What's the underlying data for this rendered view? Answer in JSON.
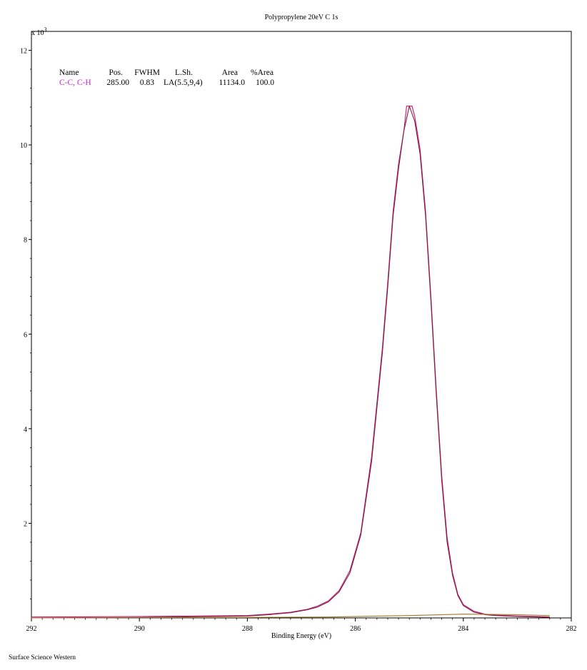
{
  "chart_data": {
    "type": "line",
    "title": "Polypropylene 20eV C 1s",
    "xlabel": "Binding Energy (eV)",
    "ylabel": "",
    "y_multiplier_label": "x 10",
    "y_multiplier_exponent": "3",
    "xlim": [
      292,
      282
    ],
    "ylim": [
      0,
      12.4
    ],
    "x_reversed": true,
    "x_ticks": [
      292,
      290,
      288,
      286,
      284,
      282
    ],
    "x_tick_labels": [
      "292",
      "290",
      "288",
      "286",
      "284",
      "282"
    ],
    "y_ticks": [
      2,
      4,
      6,
      8,
      10,
      12
    ],
    "y_tick_labels": [
      "2",
      "4",
      "6",
      "8",
      "10",
      "12"
    ],
    "grid": false,
    "legend": "none",
    "component_table": {
      "headers": [
        "Name",
        "Pos.",
        "FWHM",
        "L.Sh.",
        "Area",
        "%Area"
      ],
      "rows": [
        {
          "name": "C-C, C-H",
          "pos": "285.00",
          "fwhm": "0.83",
          "lsh": "LA(5.5,9,4)",
          "area": "11134.0",
          "pct_area": "100.0"
        }
      ]
    },
    "series": [
      {
        "role": "envelope",
        "color": "#c2187d",
        "x": [
          292.0,
          290.0,
          288.0,
          287.6,
          287.2,
          286.9,
          286.7,
          286.5,
          286.3,
          286.1,
          285.9,
          285.7,
          285.5,
          285.4,
          285.3,
          285.2,
          285.1,
          285.05,
          284.95,
          284.9,
          284.8,
          284.7,
          284.6,
          284.5,
          284.4,
          284.3,
          284.2,
          284.1,
          284.0,
          283.8,
          283.6,
          283.4,
          283.0,
          282.6,
          282.4
        ],
        "y": [
          0.02,
          0.03,
          0.05,
          0.08,
          0.12,
          0.18,
          0.25,
          0.36,
          0.58,
          1.0,
          1.8,
          3.4,
          5.7,
          7.1,
          8.6,
          9.6,
          10.3,
          10.82,
          10.82,
          10.6,
          9.9,
          8.6,
          6.8,
          4.8,
          3.0,
          1.7,
          0.95,
          0.5,
          0.28,
          0.14,
          0.08,
          0.06,
          0.04,
          0.03,
          0.02
        ]
      },
      {
        "role": "component",
        "color": "#7f1d3f",
        "x": [
          292.0,
          290.0,
          288.0,
          287.6,
          287.2,
          286.9,
          286.7,
          286.5,
          286.3,
          286.1,
          285.9,
          285.7,
          285.5,
          285.4,
          285.3,
          285.2,
          285.1,
          285.0,
          284.9,
          284.8,
          284.7,
          284.6,
          284.5,
          284.4,
          284.3,
          284.2,
          284.1,
          284.0,
          283.8,
          283.6,
          283.4,
          283.0,
          282.6,
          282.4
        ],
        "y": [
          0.0,
          0.01,
          0.04,
          0.07,
          0.11,
          0.17,
          0.23,
          0.34,
          0.55,
          0.95,
          1.75,
          3.3,
          5.6,
          7.0,
          8.5,
          9.5,
          10.3,
          10.82,
          10.5,
          9.8,
          8.5,
          6.7,
          4.7,
          2.9,
          1.6,
          0.9,
          0.47,
          0.26,
          0.12,
          0.07,
          0.05,
          0.03,
          0.02,
          0.01
        ]
      },
      {
        "role": "background",
        "color": "#a07a2a",
        "x": [
          292.0,
          288.0,
          286.5,
          285.0,
          284.0,
          283.0,
          282.4
        ],
        "y": [
          0.0,
          0.01,
          0.02,
          0.05,
          0.08,
          0.07,
          0.05
        ]
      }
    ]
  },
  "footer": {
    "text": "Surface Science Western"
  },
  "colors": {
    "component_name": "#cc22cc",
    "axis": "#000000"
  }
}
